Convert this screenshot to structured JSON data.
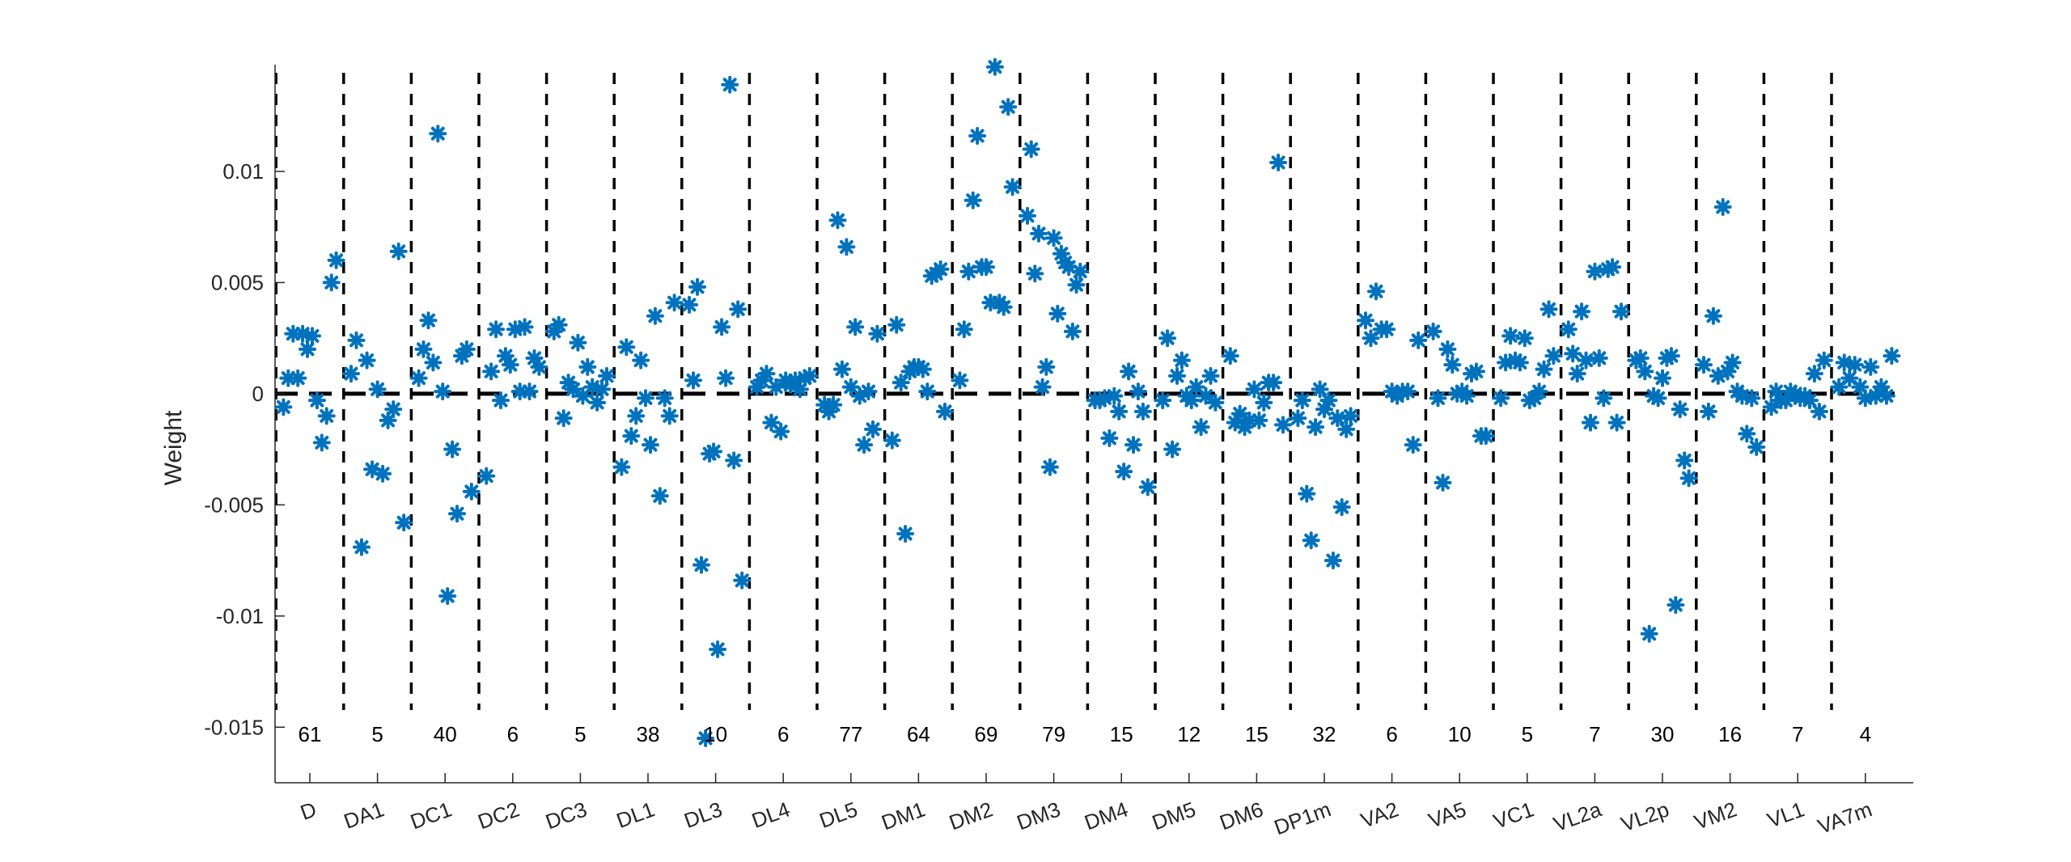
{
  "chart_data": {
    "type": "scatter",
    "ylabel": "Weight",
    "xlabel": "",
    "title": "",
    "ylim": [
      -0.0175,
      0.0148
    ],
    "yticks": [
      -0.015,
      -0.01,
      -0.005,
      0,
      0.005,
      0.01
    ],
    "ytick_labels": [
      "-0.015",
      "-0.01",
      "-0.005",
      "0",
      "0.005",
      "0.01"
    ],
    "marker": "asterisk",
    "marker_color": "#0072BD",
    "reference_line": {
      "y": 0,
      "style": "dashed",
      "color": "#000000"
    },
    "group_separators": "dashed vertical lines between groups",
    "groups": [
      {
        "label": "D",
        "count": "61",
        "values": [
          -0.0006,
          0.0007,
          0.0027,
          0.0007,
          0.0027,
          0.002,
          0.0026,
          -0.0003,
          -0.0022,
          -0.001,
          0.005,
          0.006
        ]
      },
      {
        "label": "DA1",
        "count": "5",
        "values": [
          0.0009,
          0.0024,
          -0.0069,
          0.0015,
          -0.0034,
          0.0002,
          -0.0036,
          -0.0012,
          -0.0007,
          0.0064,
          -0.0058
        ]
      },
      {
        "label": "DC1",
        "count": "40",
        "values": [
          0.0007,
          0.002,
          0.0033,
          0.0014,
          0.0117,
          0.0001,
          -0.0091,
          -0.0025,
          -0.0054,
          0.0017,
          0.002,
          -0.0044
        ]
      },
      {
        "label": "DC2",
        "count": "6",
        "values": [
          -0.0037,
          0.001,
          0.0029,
          -0.0003,
          0.0017,
          0.0013,
          0.0029,
          0.0001,
          0.003,
          0.0001,
          0.0016,
          0.0012
        ]
      },
      {
        "label": "DC3",
        "count": "5",
        "values": [
          0.0028,
          0.0031,
          -0.0011,
          0.0005,
          0.0002,
          0.0023,
          -0.0001,
          0.0012,
          0.0003,
          -0.0004,
          0.0002,
          0.0008
        ]
      },
      {
        "label": "DL1",
        "count": "38",
        "values": [
          -0.0033,
          0.0021,
          -0.0019,
          -0.001,
          0.0015,
          -0.0002,
          -0.0023,
          0.0035,
          -0.0046,
          -0.0002,
          -0.001,
          0.0041
        ]
      },
      {
        "label": "DL3",
        "count": "10",
        "values": [
          0.004,
          0.0006,
          0.0048,
          -0.0077,
          -0.0155,
          -0.0027,
          -0.0026,
          -0.0115,
          0.003,
          0.0007,
          0.0139,
          -0.003,
          0.0038,
          -0.0084
        ]
      },
      {
        "label": "DL4",
        "count": "6",
        "values": [
          0.0003,
          0.0006,
          0.0009,
          -0.0013,
          0.0003,
          -0.0017,
          0.0006,
          0.0004,
          0.0006,
          0.0002,
          0.0007,
          0.0008
        ]
      },
      {
        "label": "DL5",
        "count": "77",
        "values": [
          -0.0005,
          -0.0008,
          -0.0005,
          0.0078,
          0.0011,
          0.0066,
          0.0003,
          0.003,
          -0.0001,
          -0.0023,
          0.0001,
          -0.0016,
          0.0027
        ]
      },
      {
        "label": "DM1",
        "count": "64",
        "values": [
          -0.0021,
          0.0031,
          0.0005,
          -0.0063,
          0.001,
          0.0012,
          0.0012,
          0.0011,
          0.0001,
          0.0053,
          0.0054,
          0.0056,
          -0.0008
        ]
      },
      {
        "label": "DM2",
        "count": "69",
        "values": [
          0.0006,
          0.0029,
          0.0055,
          0.0087,
          0.0116,
          0.0057,
          0.0057,
          0.0041,
          0.0147,
          0.0041,
          0.0039,
          0.0129,
          0.0093
        ]
      },
      {
        "label": "DM3",
        "count": "79",
        "values": [
          0.008,
          0.011,
          0.0054,
          0.0072,
          0.0003,
          0.0012,
          -0.0033,
          0.007,
          0.0036,
          0.0063,
          0.0059,
          0.0057,
          0.0028,
          0.0049,
          0.0055
        ]
      },
      {
        "label": "DM4",
        "count": "15",
        "values": [
          -0.0003,
          -0.0003,
          -0.0002,
          -0.002,
          -0.0001,
          -0.0008,
          -0.0035,
          0.001,
          -0.0023,
          0.0001,
          -0.0008,
          -0.0042
        ]
      },
      {
        "label": "DM5",
        "count": "12",
        "values": [
          -0.0003,
          0.0025,
          -0.0025,
          0.0008,
          0.0015,
          -0.0001,
          -0.0003,
          0.0003,
          -0.0015,
          -0.0001,
          0.0008,
          -0.0004
        ]
      },
      {
        "label": "DM6",
        "count": "15",
        "values": [
          0.0017,
          -0.0013,
          -0.0009,
          -0.0015,
          -0.0012,
          0.0002,
          -0.0012,
          -0.0004,
          0.0005,
          0.0005,
          0.0104,
          -0.0014
        ]
      },
      {
        "label": "DP1m",
        "count": "32",
        "values": [
          -0.0011,
          -0.0003,
          -0.0045,
          -0.0066,
          -0.0015,
          0.0002,
          -0.0007,
          -0.0003,
          -0.0075,
          -0.0011,
          -0.0051,
          -0.0016,
          -0.001
        ]
      },
      {
        "label": "VA2",
        "count": "6",
        "values": [
          0.0033,
          0.0025,
          0.0046,
          0.0029,
          0.0029,
          0.0001,
          -0.0001,
          0.0001,
          0.0001,
          -0.0023,
          0.0024
        ]
      },
      {
        "label": "VA5",
        "count": "10",
        "values": [
          0.0028,
          -0.0002,
          -0.004,
          0.002,
          0.0013,
          0.0,
          0.0001,
          -0.0001,
          0.0009,
          0.001,
          -0.0019,
          -0.0019
        ]
      },
      {
        "label": "VC1",
        "count": "5",
        "values": [
          -0.0002,
          0.0014,
          0.0026,
          0.0015,
          0.0014,
          0.0025,
          -0.0003,
          -0.0002,
          0.0001,
          0.0011,
          0.0038,
          0.0017
        ]
      },
      {
        "label": "VL2a",
        "count": "7",
        "values": [
          0.0029,
          0.0018,
          0.0009,
          0.0037,
          0.0015,
          -0.0013,
          0.0055,
          0.0016,
          -0.0002,
          0.0056,
          0.0057,
          -0.0013,
          0.0037
        ]
      },
      {
        "label": "VL2p",
        "count": "30",
        "values": [
          0.0015,
          0.0016,
          0.001,
          -0.0108,
          -0.0001,
          -0.0002,
          0.0007,
          0.0016,
          0.0017,
          -0.0095,
          -0.0007,
          -0.003,
          -0.0038
        ]
      },
      {
        "label": "VM2",
        "count": "16",
        "values": [
          0.0013,
          -0.0008,
          0.0035,
          0.0008,
          0.0084,
          0.001,
          0.0014,
          0.0001,
          -0.0001,
          -0.0018,
          -0.0002,
          -0.0024
        ]
      },
      {
        "label": "VL1",
        "count": "7",
        "values": [
          -0.0006,
          0.0001,
          -0.0003,
          -0.0003,
          0.0001,
          0.0,
          -0.0002,
          -0.0001,
          -0.0003,
          0.0009,
          -0.0008,
          0.0015
        ]
      },
      {
        "label": "VA7m",
        "count": "4",
        "values": [
          0.0003,
          0.0014,
          0.0007,
          0.0013,
          0.0003,
          -0.0002,
          0.0012,
          -0.0001,
          0.0003,
          -0.0001,
          0.0017
        ]
      }
    ]
  }
}
